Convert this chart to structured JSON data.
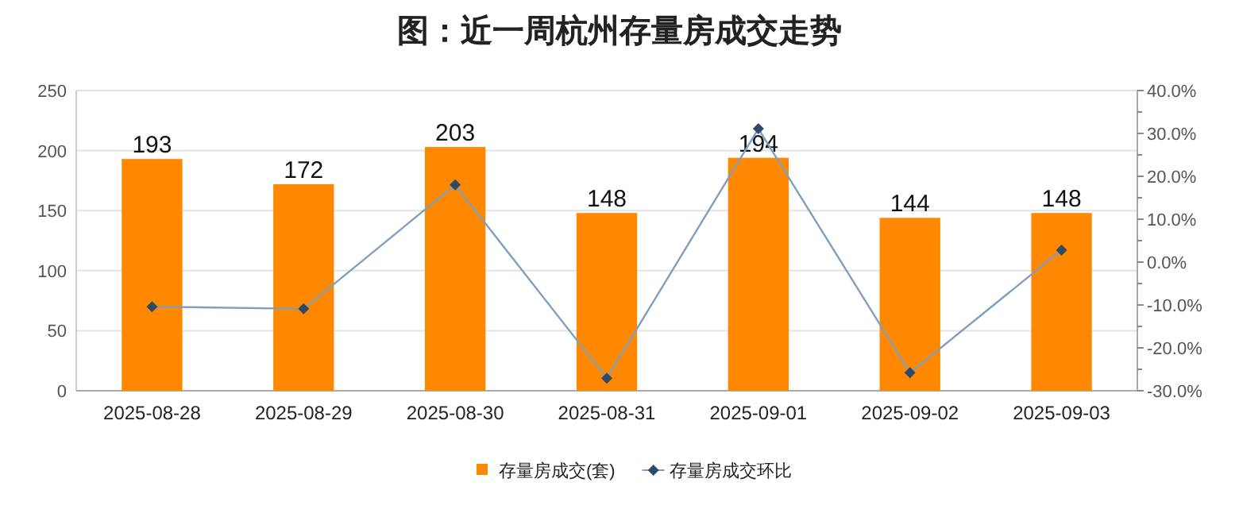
{
  "chart_data": {
    "type": "bar",
    "title": "图：近一周杭州存量房成交走势",
    "categories": [
      "2025-08-28",
      "2025-08-29",
      "2025-08-30",
      "2025-08-31",
      "2025-09-01",
      "2025-09-02",
      "2025-09-03"
    ],
    "series": [
      {
        "name": "存量房成交(套)",
        "color": "#ff8800",
        "values": [
          193,
          172,
          203,
          148,
          194,
          144,
          148
        ],
        "data_labels": true
      },
      {
        "name": "存量房成交环比",
        "type": "line",
        "axis": "y2",
        "color": "#7f9fbf",
        "marker": "diamond",
        "values": [
          -10.4,
          -10.9,
          18.0,
          -27.1,
          31.1,
          -25.8,
          2.8
        ]
      }
    ],
    "ylim": [
      0,
      250
    ],
    "yticks": [
      0,
      50,
      100,
      150,
      200,
      250
    ],
    "y2lim": [
      -30,
      40
    ],
    "y2ticks": [
      {
        "value": -30,
        "label": "-30.0%"
      },
      {
        "value": -20,
        "label": "-20.0%"
      },
      {
        "value": -10,
        "label": "-10.0%"
      },
      {
        "value": 0,
        "label": "0.0%"
      },
      {
        "value": 10,
        "label": "10.0%"
      },
      {
        "value": 20,
        "label": "20.0%"
      },
      {
        "value": 30,
        "label": "30.0%"
      },
      {
        "value": 40,
        "label": "40.0%"
      }
    ],
    "grid": "y",
    "legend": "bottom"
  }
}
